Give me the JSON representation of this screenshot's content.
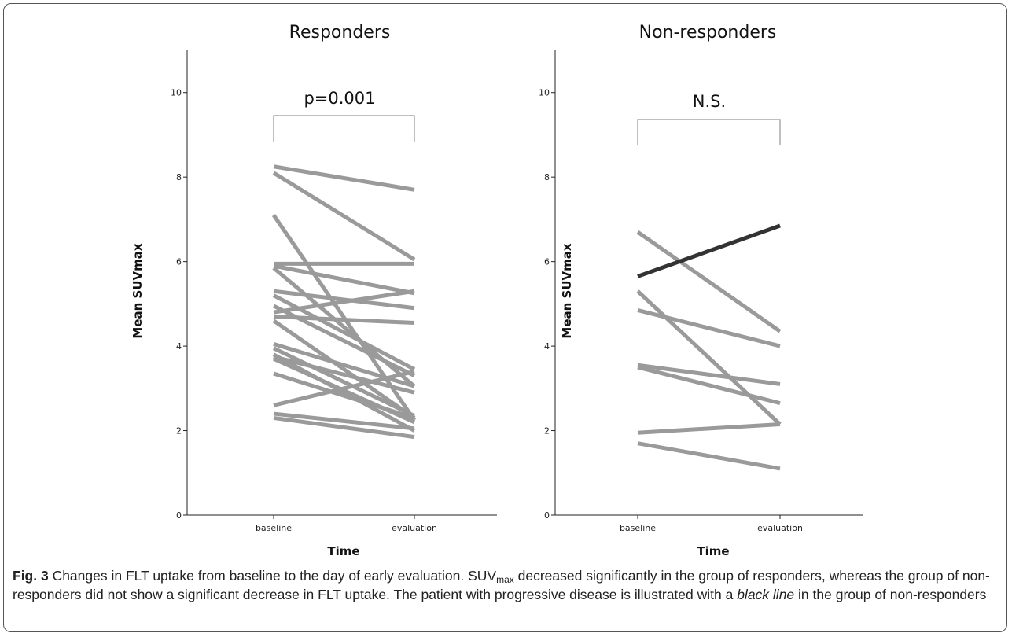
{
  "chart_data": [
    {
      "type": "line",
      "title": "Responders",
      "xlabel": "Time",
      "ylabel": "Mean SUVmax",
      "categories": [
        "baseline",
        "evaluation"
      ],
      "ylim": [
        0,
        11
      ],
      "yticks": [
        "0",
        "2",
        "4",
        "6",
        "8",
        "10"
      ],
      "annotation": "p=0.001",
      "series": [
        {
          "values": [
            8.25,
            7.7
          ]
        },
        {
          "values": [
            8.1,
            6.05
          ]
        },
        {
          "values": [
            7.1,
            2.25
          ]
        },
        {
          "values": [
            5.95,
            5.95
          ]
        },
        {
          "values": [
            5.9,
            5.25
          ]
        },
        {
          "values": [
            5.85,
            3.05
          ]
        },
        {
          "values": [
            5.3,
            4.9
          ]
        },
        {
          "values": [
            5.2,
            3.45
          ]
        },
        {
          "values": [
            4.95,
            3.3
          ]
        },
        {
          "values": [
            4.8,
            5.3
          ]
        },
        {
          "values": [
            4.6,
            2.3
          ]
        },
        {
          "values": [
            4.05,
            3.05
          ]
        },
        {
          "values": [
            3.95,
            2.35
          ]
        },
        {
          "values": [
            3.8,
            2.0
          ]
        },
        {
          "values": [
            3.75,
            2.9
          ]
        },
        {
          "values": [
            3.7,
            2.2
          ]
        },
        {
          "values": [
            3.35,
            2.3
          ]
        },
        {
          "values": [
            2.6,
            3.4
          ]
        },
        {
          "values": [
            2.4,
            2.05
          ]
        },
        {
          "values": [
            2.3,
            1.85
          ]
        },
        {
          "values": [
            4.7,
            4.55
          ]
        }
      ]
    },
    {
      "type": "line",
      "title": "Non-responders",
      "xlabel": "Time",
      "ylabel": "Mean SUVmax",
      "categories": [
        "baseline",
        "evaluation"
      ],
      "ylim": [
        0,
        11
      ],
      "yticks": [
        "0",
        "2",
        "4",
        "6",
        "8",
        "10"
      ],
      "annotation": "N.S.",
      "series": [
        {
          "values": [
            6.7,
            4.35
          ],
          "color": "#9a9a9a"
        },
        {
          "values": [
            5.65,
            6.85
          ],
          "color": "#333333"
        },
        {
          "values": [
            5.3,
            2.15
          ],
          "color": "#9a9a9a"
        },
        {
          "values": [
            4.85,
            4.0
          ],
          "color": "#9a9a9a"
        },
        {
          "values": [
            3.55,
            3.1
          ],
          "color": "#9a9a9a"
        },
        {
          "values": [
            3.5,
            2.65
          ],
          "color": "#9a9a9a"
        },
        {
          "values": [
            1.95,
            2.15
          ],
          "color": "#9a9a9a"
        },
        {
          "values": [
            1.7,
            1.1
          ],
          "color": "#9a9a9a"
        }
      ]
    }
  ],
  "colors": {
    "line": "#9a9a9a",
    "highlight": "#333333",
    "bracket": "#aaaaaa"
  },
  "caption": {
    "label": "Fig. 3",
    "part1": " Changes in FLT uptake from baseline to the day of early evaluation. SUV",
    "sub": "max",
    "part2": " decreased significantly in the group of responders, whereas the group of non-responders did not show a significant decrease in FLT uptake. The patient with progressive disease is illustrated with a ",
    "italic": "black line",
    "part3": " in the group of non-responders"
  }
}
